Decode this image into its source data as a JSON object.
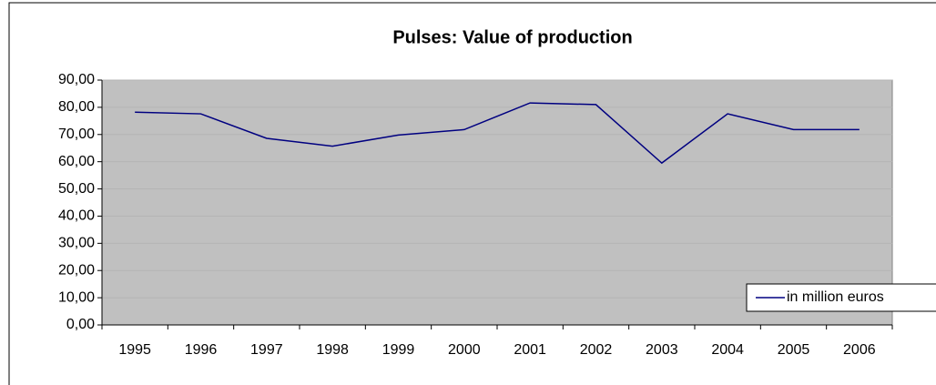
{
  "chart_data": {
    "type": "line",
    "title": "Pulses: Value of production",
    "categories": [
      "1995",
      "1996",
      "1997",
      "1998",
      "1999",
      "2000",
      "2001",
      "2002",
      "2003",
      "2004",
      "2005",
      "2006"
    ],
    "series": [
      {
        "name": "in million euros",
        "color": "#000080",
        "values": [
          78.2,
          77.6,
          68.6,
          65.7,
          69.8,
          71.8,
          81.6,
          81.0,
          59.5,
          77.6,
          71.8,
          71.8
        ]
      }
    ],
    "ylim": [
      0,
      90
    ],
    "yticks": [
      {
        "value": 0,
        "label": "0,00"
      },
      {
        "value": 10,
        "label": "10,00"
      },
      {
        "value": 20,
        "label": "20,00"
      },
      {
        "value": 30,
        "label": "30,00"
      },
      {
        "value": 40,
        "label": "40,00"
      },
      {
        "value": 50,
        "label": "50,00"
      },
      {
        "value": 60,
        "label": "60,00"
      },
      {
        "value": 70,
        "label": "70,00"
      },
      {
        "value": 80,
        "label": "80,00"
      },
      {
        "value": 90,
        "label": "90,00"
      }
    ],
    "grid": true,
    "legend": "right"
  }
}
